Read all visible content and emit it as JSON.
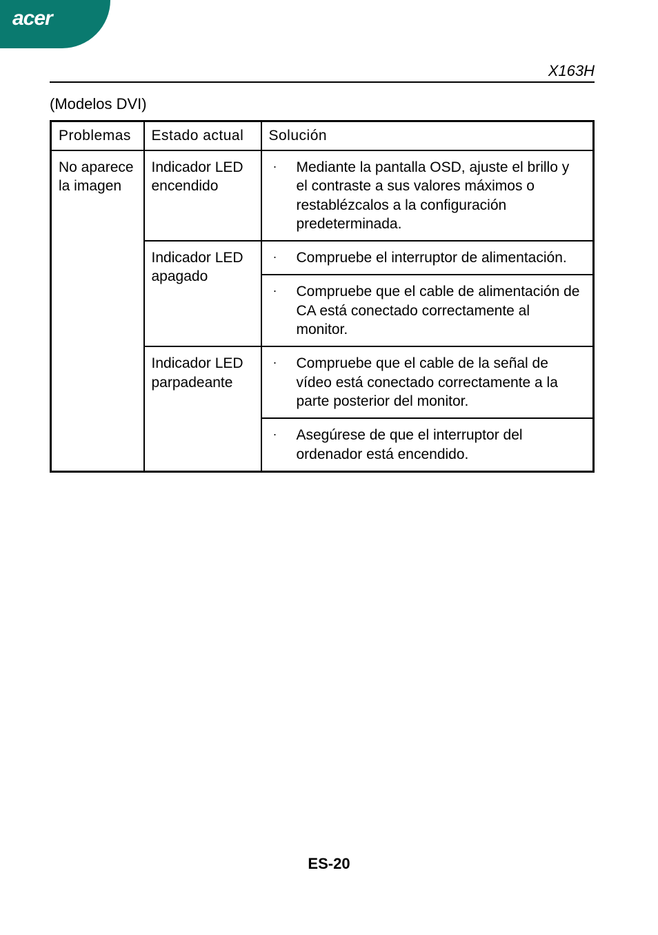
{
  "brand": {
    "name": "acer",
    "tab_color": "#0a7a6f",
    "text_color": "#ffffff"
  },
  "header": {
    "model": "X163H"
  },
  "section": {
    "title": "(Modelos DVI)"
  },
  "table": {
    "columns": [
      "Problemas",
      "Estado actual",
      "Solución"
    ],
    "problem": "No aparece la imagen",
    "rows": [
      {
        "state": "Indicador LED encendido",
        "solutions": [
          "Mediante la pantalla OSD, ajuste el brillo y el contraste a sus valores máximos o restablézcalos a la configuración predeterminada."
        ]
      },
      {
        "state": "Indicador LED apagado",
        "solutions": [
          "Compruebe el interruptor de alimentación.",
          "Compruebe que el cable de alimentación de CA está conectado correctamente al monitor."
        ]
      },
      {
        "state": "Indicador LED parpadeante",
        "solutions": [
          "Compruebe que el cable de la señal de vídeo está conectado correctamente a la parte posterior del monitor.",
          "Asegúrese de que el interruptor del ordenador está encendido."
        ]
      }
    ],
    "bullet_glyph": "·",
    "border_color": "#000000",
    "font_size": 21
  },
  "footer": {
    "page_number": "ES-20"
  }
}
